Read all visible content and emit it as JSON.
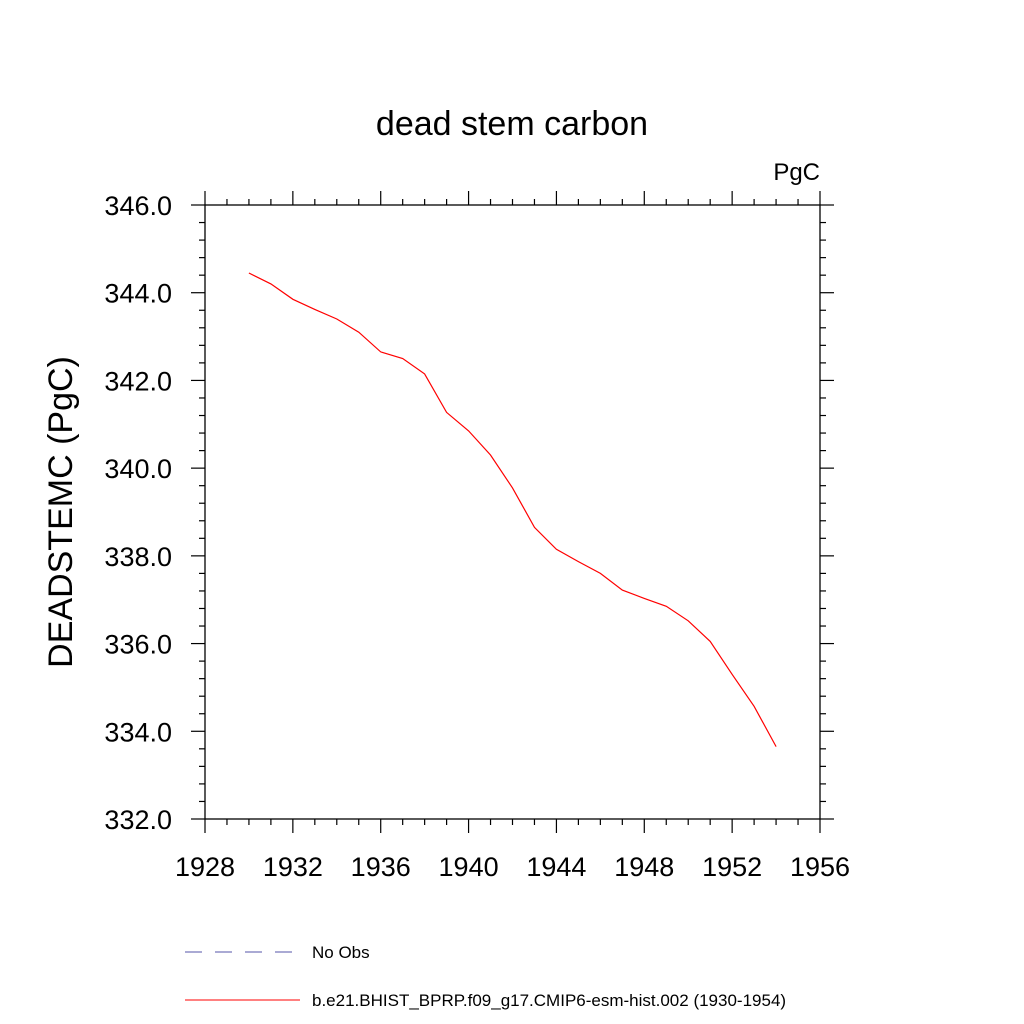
{
  "chart_data": {
    "type": "line",
    "title": "dead stem carbon",
    "units_label": "PgC",
    "ylabel": "DEADSTEMC  (PgC)",
    "xlabel": "",
    "xlim": [
      1928,
      1956
    ],
    "ylim": [
      332.0,
      346.0
    ],
    "x_ticks": [
      1928,
      1932,
      1936,
      1940,
      1944,
      1948,
      1952,
      1956
    ],
    "y_ticks": [
      "332.0",
      "334.0",
      "336.0",
      "338.0",
      "340.0",
      "342.0",
      "344.0",
      "346.0"
    ],
    "grid": false,
    "legend_position": "bottom",
    "series": [
      {
        "name": "b.e21.BHIST_BPRP.f09_g17.CMIP6-esm-hist.002 (1930-1954)",
        "color": "#ff0000",
        "style": "solid",
        "x": [
          1930,
          1931,
          1932,
          1933,
          1934,
          1935,
          1936,
          1937,
          1938,
          1939,
          1940,
          1941,
          1942,
          1943,
          1944,
          1945,
          1946,
          1947,
          1948,
          1949,
          1950,
          1951,
          1952,
          1953,
          1954
        ],
        "y": [
          344.45,
          344.2,
          343.85,
          343.62,
          343.4,
          343.1,
          342.65,
          342.5,
          342.15,
          341.27,
          340.85,
          340.3,
          339.55,
          338.65,
          338.15,
          337.87,
          337.6,
          337.22,
          337.03,
          336.85,
          336.52,
          336.05,
          335.3,
          334.57,
          333.65
        ]
      }
    ],
    "legend": [
      {
        "label": "No Obs",
        "color": "#5555aa",
        "style": "dashed"
      },
      {
        "label": "b.e21.BHIST_BPRP.f09_g17.CMIP6-esm-hist.002 (1930-1954)",
        "color": "#ff0000",
        "style": "solid"
      }
    ]
  }
}
